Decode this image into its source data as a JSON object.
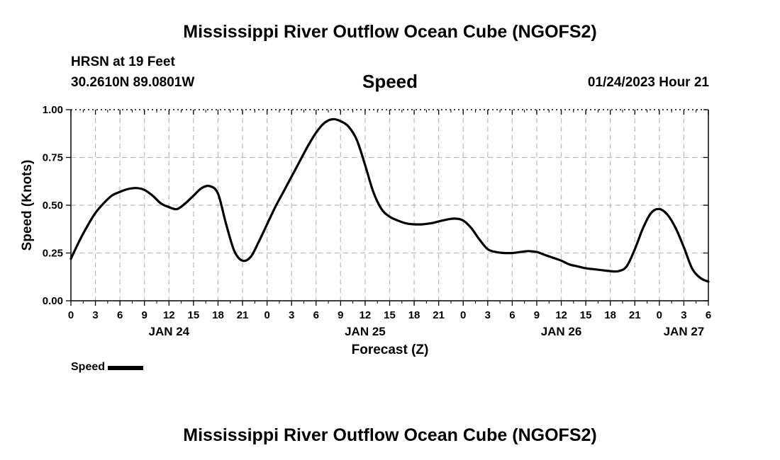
{
  "header": {
    "title": "Mississippi River Outflow Ocean Cube (NGOFS2)",
    "station": "HRSN at 19 Feet",
    "coords": "30.2610N  89.0801W",
    "datetime": "01/24/2023 Hour 21",
    "footer_title": "Mississippi River Outflow Ocean Cube (NGOFS2)"
  },
  "colors": {
    "line": "#000000",
    "grid": "#bbbbbb"
  },
  "chart_data": {
    "type": "line",
    "title": "Speed",
    "xlabel": "Forecast (Z)",
    "ylabel": "Speed (Knots)",
    "xlim": [
      0,
      78
    ],
    "ylim": [
      0,
      1
    ],
    "grid": true,
    "legend_position": "bottom-left",
    "y_ticks": [
      {
        "value": 0,
        "label": "0.00"
      },
      {
        "value": 0.25,
        "label": "0.25"
      },
      {
        "value": 0.5,
        "label": "0.50"
      },
      {
        "value": 0.75,
        "label": "0.75"
      },
      {
        "value": 1,
        "label": "1.00"
      }
    ],
    "x_ticks": [
      "0",
      "3",
      "6",
      "9",
      "12",
      "15",
      "18",
      "21",
      "0",
      "3",
      "6",
      "9",
      "12",
      "15",
      "18",
      "21",
      "0",
      "3",
      "6",
      "9",
      "12",
      "15",
      "18",
      "21",
      "0",
      "3",
      "6"
    ],
    "day_labels": [
      {
        "label": "JAN 24",
        "at": 12
      },
      {
        "label": "JAN 25",
        "at": 36
      },
      {
        "label": "JAN 26",
        "at": 60
      },
      {
        "label": "JAN 27",
        "at": 75
      }
    ],
    "series": [
      {
        "name": "Speed",
        "x": [
          0,
          1,
          2,
          3,
          4,
          5,
          6,
          7,
          8,
          9,
          10,
          11,
          12,
          13,
          14,
          15,
          16,
          17,
          18,
          19,
          20,
          21,
          22,
          23,
          24,
          25,
          26,
          27,
          28,
          29,
          30,
          31,
          32,
          33,
          34,
          35,
          36,
          37,
          38,
          39,
          40,
          41,
          42,
          43,
          44,
          45,
          46,
          47,
          48,
          49,
          50,
          51,
          52,
          53,
          54,
          55,
          56,
          57,
          58,
          59,
          60,
          61,
          62,
          63,
          64,
          65,
          66,
          67,
          68,
          69,
          70,
          71,
          72,
          73,
          74,
          75,
          76,
          77,
          78
        ],
        "values": [
          0.22,
          0.31,
          0.39,
          0.46,
          0.51,
          0.55,
          0.57,
          0.585,
          0.59,
          0.58,
          0.55,
          0.51,
          0.49,
          0.48,
          0.51,
          0.55,
          0.59,
          0.6,
          0.56,
          0.4,
          0.26,
          0.21,
          0.23,
          0.31,
          0.4,
          0.49,
          0.57,
          0.65,
          0.73,
          0.81,
          0.88,
          0.93,
          0.95,
          0.94,
          0.91,
          0.84,
          0.71,
          0.57,
          0.48,
          0.44,
          0.42,
          0.405,
          0.4,
          0.4,
          0.405,
          0.415,
          0.425,
          0.43,
          0.42,
          0.38,
          0.32,
          0.27,
          0.255,
          0.25,
          0.25,
          0.255,
          0.26,
          0.255,
          0.24,
          0.225,
          0.21,
          0.19,
          0.18,
          0.17,
          0.165,
          0.16,
          0.155,
          0.155,
          0.18,
          0.27,
          0.38,
          0.46,
          0.48,
          0.45,
          0.38,
          0.28,
          0.17,
          0.12,
          0.1
        ]
      }
    ]
  },
  "legend": {
    "label": "Speed"
  }
}
